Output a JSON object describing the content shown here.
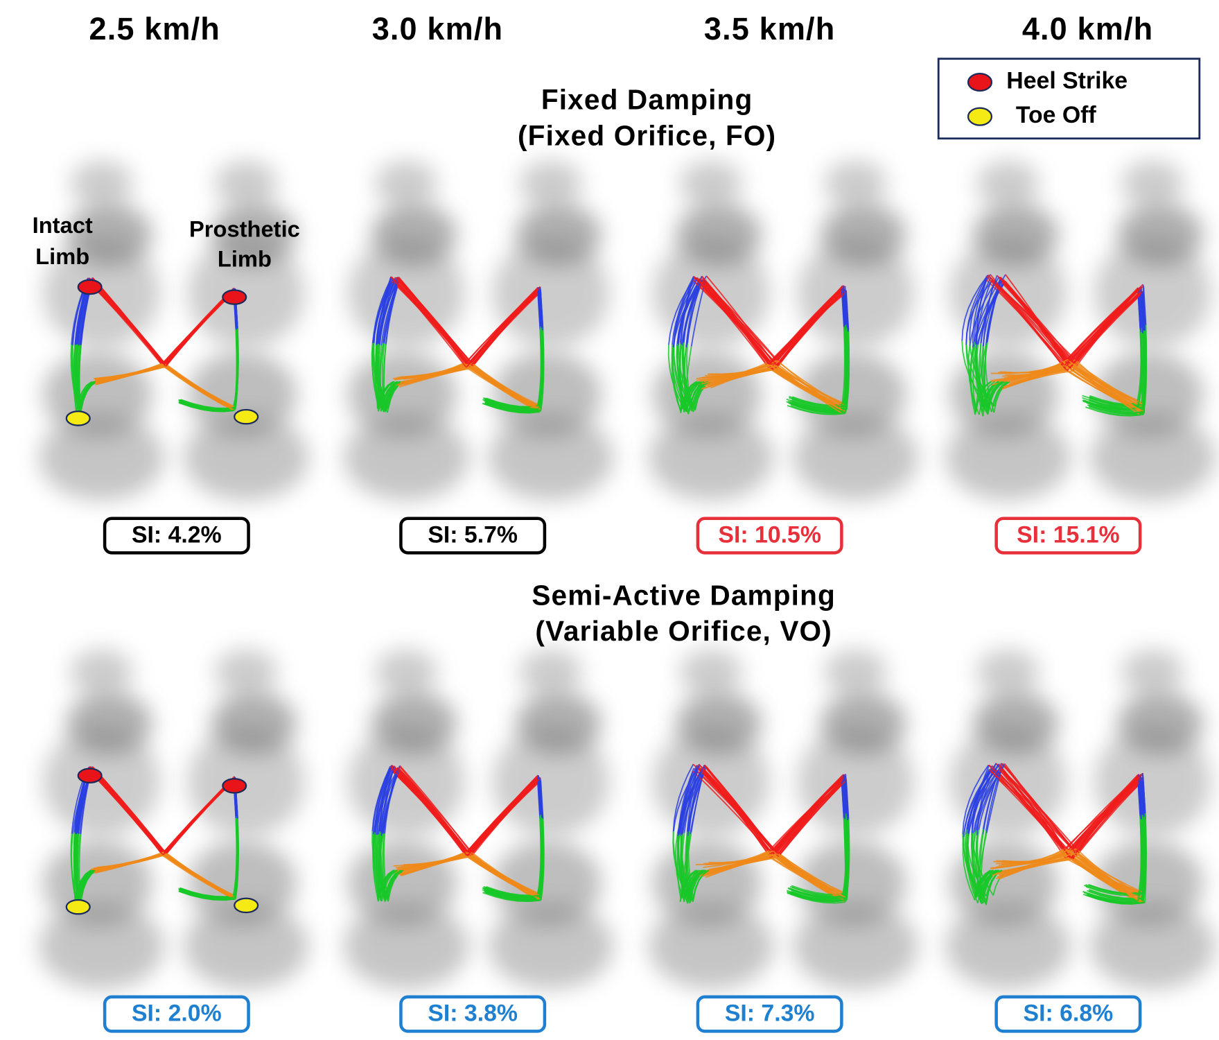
{
  "speeds": [
    "2.5 km/h",
    "3.0 km/h",
    "3.5 km/h",
    "4.0 km/h"
  ],
  "legend": [
    {
      "label": "Heel Strike",
      "color": "#e8141a"
    },
    {
      "label": "Toe Off",
      "color": "#f5ea14"
    }
  ],
  "limb_labels": {
    "intact": [
      "Intact",
      "Limb"
    ],
    "prosthetic": [
      "Prosthetic",
      "Limb"
    ]
  },
  "sections": [
    {
      "title": [
        "Fixed Damping",
        "(Fixed Orifice, FO)"
      ],
      "si": [
        {
          "label": "SI: 4.2%",
          "color": "#000000"
        },
        {
          "label": "SI: 5.7%",
          "color": "#000000"
        },
        {
          "label": "SI: 10.5%",
          "color": "#e8303a"
        },
        {
          "label": "SI: 15.1%",
          "color": "#e8303a"
        }
      ]
    },
    {
      "title": [
        "Semi-Active Damping",
        "(Variable Orifice, VO)"
      ],
      "si": [
        {
          "label": "SI: 2.0%",
          "color": "#1f7fd1"
        },
        {
          "label": "SI: 3.8%",
          "color": "#1f7fd1"
        },
        {
          "label": "SI: 7.3%",
          "color": "#1f7fd1"
        },
        {
          "label": "SI: 6.8%",
          "color": "#1f7fd1"
        }
      ]
    }
  ]
}
